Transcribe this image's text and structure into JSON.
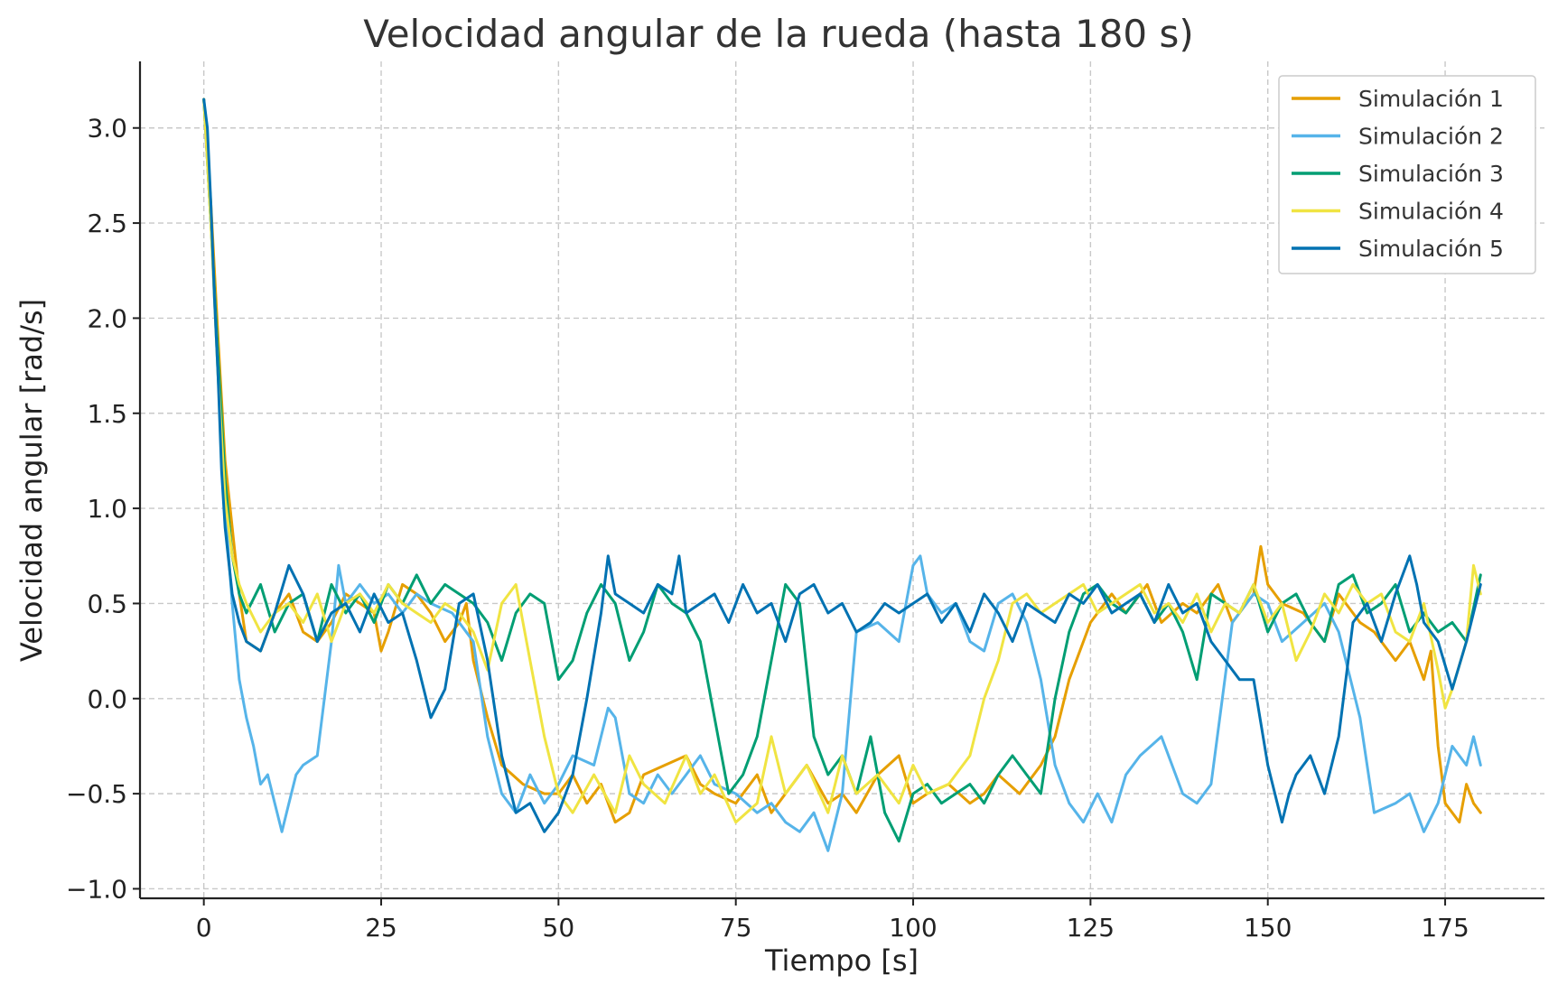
{
  "chart_data": {
    "type": "line",
    "title": "Velocidad angular de la rueda (hasta 180 s)",
    "xlabel": "Tiempo [s]",
    "ylabel": "Velocidad angular [rad/s]",
    "xlim": [
      -9,
      189
    ],
    "ylim": [
      -1.05,
      3.35
    ],
    "xticks": [
      0,
      25,
      50,
      75,
      100,
      125,
      150,
      175
    ],
    "yticks": [
      -1.0,
      -0.5,
      0.0,
      0.5,
      1.0,
      1.5,
      2.0,
      2.5,
      3.0
    ],
    "ytick_labels": [
      "−1.0",
      "−0.5",
      "0.0",
      "0.5",
      "1.0",
      "1.5",
      "2.0",
      "2.5",
      "3.0"
    ],
    "grid": true,
    "legend_position": "top-right",
    "series": [
      {
        "name": "Simulación 1",
        "color": "#E69F00",
        "x": [
          0,
          1,
          2,
          3,
          4,
          5,
          6,
          8,
          10,
          12,
          14,
          16,
          18,
          20,
          22,
          24,
          25,
          26,
          28,
          30,
          32,
          34,
          36,
          37,
          38,
          40,
          42,
          45,
          48,
          50,
          52,
          54,
          56,
          58,
          60,
          62,
          65,
          68,
          70,
          72,
          75,
          78,
          80,
          82,
          85,
          88,
          90,
          92,
          95,
          98,
          100,
          102,
          105,
          108,
          110,
          112,
          115,
          118,
          120,
          122,
          125,
          128,
          130,
          133,
          135,
          138,
          140,
          143,
          145,
          148,
          149,
          150,
          152,
          155,
          158,
          160,
          163,
          165,
          168,
          170,
          172,
          173,
          174,
          175,
          177,
          178,
          179,
          180
        ],
        "y": [
          3.15,
          2.6,
          1.9,
          1.25,
          0.9,
          0.55,
          0.3,
          0.25,
          0.45,
          0.55,
          0.35,
          0.3,
          0.4,
          0.55,
          0.5,
          0.45,
          0.25,
          0.35,
          0.6,
          0.55,
          0.45,
          0.3,
          0.4,
          0.5,
          0.2,
          -0.1,
          -0.35,
          -0.45,
          -0.5,
          -0.5,
          -0.4,
          -0.55,
          -0.45,
          -0.65,
          -0.6,
          -0.4,
          -0.35,
          -0.3,
          -0.45,
          -0.5,
          -0.55,
          -0.4,
          -0.6,
          -0.5,
          -0.35,
          -0.55,
          -0.5,
          -0.6,
          -0.4,
          -0.3,
          -0.55,
          -0.5,
          -0.45,
          -0.55,
          -0.5,
          -0.4,
          -0.5,
          -0.35,
          -0.2,
          0.1,
          0.4,
          0.55,
          0.45,
          0.6,
          0.4,
          0.5,
          0.45,
          0.6,
          0.4,
          0.55,
          0.8,
          0.6,
          0.5,
          0.45,
          0.3,
          0.55,
          0.4,
          0.35,
          0.2,
          0.3,
          0.1,
          0.25,
          -0.25,
          -0.55,
          -0.65,
          -0.45,
          -0.55,
          -0.6
        ]
      },
      {
        "name": "Simulación 2",
        "color": "#56B4E9",
        "x": [
          0,
          1,
          2,
          3,
          4,
          5,
          6,
          7,
          8,
          9,
          10,
          11,
          12,
          13,
          14,
          16,
          18,
          19,
          20,
          22,
          24,
          26,
          28,
          30,
          32,
          35,
          38,
          40,
          42,
          44,
          46,
          48,
          50,
          52,
          55,
          57,
          58,
          60,
          62,
          64,
          66,
          68,
          70,
          72,
          75,
          78,
          80,
          82,
          84,
          86,
          88,
          90,
          92,
          95,
          98,
          100,
          101,
          102,
          104,
          106,
          108,
          110,
          112,
          114,
          116,
          118,
          120,
          122,
          124,
          126,
          128,
          130,
          132,
          135,
          138,
          140,
          142,
          145,
          148,
          150,
          152,
          155,
          158,
          160,
          163,
          165,
          168,
          170,
          172,
          174,
          176,
          178,
          179,
          180
        ],
        "y": [
          3.15,
          2.5,
          1.7,
          1.0,
          0.5,
          0.1,
          -0.1,
          -0.25,
          -0.45,
          -0.4,
          -0.55,
          -0.7,
          -0.55,
          -0.4,
          -0.35,
          -0.3,
          0.3,
          0.7,
          0.5,
          0.6,
          0.5,
          0.55,
          0.45,
          0.55,
          0.5,
          0.45,
          0.3,
          -0.2,
          -0.5,
          -0.6,
          -0.4,
          -0.55,
          -0.45,
          -0.3,
          -0.35,
          -0.05,
          -0.1,
          -0.5,
          -0.55,
          -0.4,
          -0.5,
          -0.4,
          -0.3,
          -0.45,
          -0.5,
          -0.6,
          -0.55,
          -0.65,
          -0.7,
          -0.6,
          -0.8,
          -0.5,
          0.35,
          0.4,
          0.3,
          0.7,
          0.75,
          0.55,
          0.45,
          0.5,
          0.3,
          0.25,
          0.5,
          0.55,
          0.4,
          0.1,
          -0.35,
          -0.55,
          -0.65,
          -0.5,
          -0.65,
          -0.4,
          -0.3,
          -0.2,
          -0.5,
          -0.55,
          -0.45,
          0.4,
          0.55,
          0.5,
          0.3,
          0.4,
          0.5,
          0.35,
          -0.1,
          -0.6,
          -0.55,
          -0.5,
          -0.7,
          -0.55,
          -0.25,
          -0.35,
          -0.2,
          -0.35
        ]
      },
      {
        "name": "Simulación 3",
        "color": "#009E73",
        "x": [
          0,
          1,
          2,
          3,
          4,
          5,
          6,
          8,
          10,
          12,
          14,
          16,
          18,
          20,
          22,
          24,
          26,
          28,
          30,
          32,
          34,
          36,
          38,
          40,
          42,
          44,
          46,
          48,
          50,
          52,
          54,
          56,
          58,
          60,
          62,
          64,
          66,
          68,
          70,
          72,
          74,
          76,
          78,
          80,
          82,
          84,
          86,
          88,
          90,
          92,
          94,
          96,
          98,
          100,
          102,
          104,
          106,
          108,
          110,
          112,
          114,
          116,
          118,
          120,
          122,
          124,
          126,
          128,
          130,
          132,
          134,
          136,
          138,
          140,
          142,
          144,
          146,
          148,
          150,
          152,
          154,
          156,
          158,
          160,
          162,
          164,
          166,
          168,
          170,
          172,
          174,
          176,
          178,
          180
        ],
        "y": [
          3.15,
          2.5,
          1.8,
          1.15,
          0.75,
          0.55,
          0.45,
          0.6,
          0.35,
          0.5,
          0.55,
          0.3,
          0.6,
          0.45,
          0.55,
          0.4,
          0.6,
          0.5,
          0.65,
          0.5,
          0.6,
          0.55,
          0.5,
          0.4,
          0.2,
          0.45,
          0.55,
          0.5,
          0.1,
          0.2,
          0.45,
          0.6,
          0.5,
          0.2,
          0.35,
          0.6,
          0.5,
          0.45,
          0.3,
          -0.1,
          -0.5,
          -0.4,
          -0.2,
          0.2,
          0.6,
          0.5,
          -0.2,
          -0.4,
          -0.3,
          -0.5,
          -0.2,
          -0.6,
          -0.75,
          -0.5,
          -0.45,
          -0.55,
          -0.5,
          -0.45,
          -0.55,
          -0.4,
          -0.3,
          -0.4,
          -0.5,
          0.0,
          0.35,
          0.55,
          0.6,
          0.5,
          0.45,
          0.55,
          0.4,
          0.5,
          0.35,
          0.1,
          0.55,
          0.5,
          0.45,
          0.6,
          0.35,
          0.5,
          0.55,
          0.4,
          0.3,
          0.6,
          0.65,
          0.45,
          0.5,
          0.6,
          0.35,
          0.45,
          0.35,
          0.4,
          0.3,
          0.65
        ]
      },
      {
        "name": "Simulación 4",
        "color": "#F0E442",
        "x": [
          0,
          1,
          2,
          3,
          4,
          5,
          6,
          8,
          10,
          12,
          14,
          16,
          18,
          20,
          22,
          24,
          26,
          28,
          30,
          32,
          34,
          36,
          38,
          40,
          42,
          44,
          46,
          48,
          50,
          52,
          55,
          58,
          60,
          62,
          65,
          68,
          70,
          72,
          75,
          78,
          80,
          82,
          85,
          88,
          90,
          92,
          95,
          98,
          100,
          102,
          105,
          108,
          110,
          112,
          114,
          116,
          118,
          120,
          122,
          124,
          126,
          128,
          130,
          132,
          134,
          136,
          138,
          140,
          142,
          144,
          146,
          148,
          150,
          152,
          154,
          156,
          158,
          160,
          162,
          164,
          166,
          168,
          170,
          172,
          174,
          175,
          176,
          178,
          179,
          180
        ],
        "y": [
          3.15,
          2.5,
          1.7,
          1.05,
          0.75,
          0.6,
          0.5,
          0.35,
          0.45,
          0.5,
          0.4,
          0.55,
          0.3,
          0.5,
          0.55,
          0.45,
          0.6,
          0.5,
          0.45,
          0.4,
          0.5,
          0.45,
          0.35,
          0.15,
          0.5,
          0.6,
          0.2,
          -0.2,
          -0.5,
          -0.6,
          -0.4,
          -0.6,
          -0.3,
          -0.45,
          -0.55,
          -0.3,
          -0.5,
          -0.4,
          -0.65,
          -0.55,
          -0.2,
          -0.5,
          -0.35,
          -0.6,
          -0.3,
          -0.5,
          -0.4,
          -0.55,
          -0.35,
          -0.5,
          -0.45,
          -0.3,
          0.0,
          0.2,
          0.5,
          0.55,
          0.45,
          0.5,
          0.55,
          0.6,
          0.45,
          0.5,
          0.55,
          0.6,
          0.45,
          0.5,
          0.4,
          0.55,
          0.35,
          0.5,
          0.45,
          0.6,
          0.4,
          0.5,
          0.2,
          0.35,
          0.55,
          0.45,
          0.6,
          0.5,
          0.55,
          0.35,
          0.3,
          0.5,
          0.15,
          -0.05,
          0.05,
          0.3,
          0.7,
          0.55
        ]
      },
      {
        "name": "Simulación 5",
        "color": "#0072B2",
        "x": [
          0,
          0.5,
          1,
          1.5,
          2,
          2.5,
          3,
          4,
          5,
          6,
          8,
          10,
          12,
          14,
          16,
          18,
          20,
          22,
          24,
          26,
          28,
          30,
          32,
          34,
          36,
          38,
          40,
          42,
          44,
          46,
          48,
          50,
          52,
          54,
          56,
          57,
          58,
          60,
          62,
          64,
          66,
          67,
          68,
          70,
          72,
          74,
          76,
          78,
          80,
          82,
          84,
          86,
          88,
          90,
          92,
          94,
          96,
          98,
          100,
          102,
          104,
          106,
          108,
          110,
          112,
          114,
          116,
          118,
          120,
          122,
          124,
          126,
          128,
          130,
          132,
          134,
          136,
          138,
          140,
          142,
          144,
          146,
          148,
          150,
          152,
          153,
          154,
          156,
          158,
          160,
          162,
          164,
          166,
          168,
          170,
          171,
          172,
          174,
          176,
          178,
          180
        ],
        "y": [
          3.15,
          3.0,
          2.6,
          2.1,
          1.7,
          1.2,
          0.9,
          0.55,
          0.4,
          0.3,
          0.25,
          0.45,
          0.7,
          0.55,
          0.3,
          0.45,
          0.5,
          0.35,
          0.55,
          0.4,
          0.45,
          0.2,
          -0.1,
          0.05,
          0.5,
          0.55,
          0.2,
          -0.3,
          -0.6,
          -0.55,
          -0.7,
          -0.6,
          -0.4,
          0.0,
          0.45,
          0.75,
          0.55,
          0.5,
          0.45,
          0.6,
          0.55,
          0.75,
          0.45,
          0.5,
          0.55,
          0.4,
          0.6,
          0.45,
          0.5,
          0.3,
          0.55,
          0.6,
          0.45,
          0.5,
          0.35,
          0.4,
          0.5,
          0.45,
          0.5,
          0.55,
          0.4,
          0.5,
          0.35,
          0.55,
          0.45,
          0.3,
          0.5,
          0.45,
          0.4,
          0.55,
          0.5,
          0.6,
          0.45,
          0.5,
          0.55,
          0.4,
          0.6,
          0.45,
          0.5,
          0.3,
          0.2,
          0.1,
          0.1,
          -0.35,
          -0.65,
          -0.5,
          -0.4,
          -0.3,
          -0.5,
          -0.2,
          0.4,
          0.5,
          0.3,
          0.55,
          0.75,
          0.6,
          0.4,
          0.3,
          0.05,
          0.3,
          0.6
        ]
      }
    ]
  }
}
